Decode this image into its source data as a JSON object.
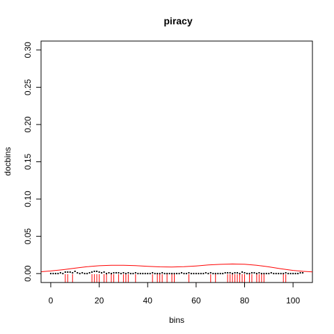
{
  "chart_data": {
    "type": "line",
    "title": "piracy",
    "xlabel": "bins",
    "ylabel": "docbins",
    "xlim": [
      -4,
      108
    ],
    "ylim": [
      -0.012,
      0.312
    ],
    "x_ticks": [
      0,
      20,
      40,
      60,
      80,
      100
    ],
    "y_ticks": [
      0.0,
      0.05,
      0.1,
      0.15,
      0.2,
      0.25,
      0.3
    ],
    "x_tick_labels": [
      "0",
      "20",
      "40",
      "60",
      "80",
      "100"
    ],
    "y_tick_labels": [
      "0.00",
      "0.05",
      "0.10",
      "0.15",
      "0.20",
      "0.25",
      "0.30"
    ],
    "grid": false,
    "series": [
      {
        "type": "points",
        "color": "#000000",
        "x": [
          0,
          1,
          2,
          3,
          4,
          5,
          6,
          7,
          8,
          9,
          10,
          11,
          12,
          13,
          14,
          15,
          16,
          17,
          18,
          19,
          20,
          21,
          22,
          23,
          24,
          25,
          26,
          27,
          28,
          29,
          30,
          31,
          32,
          33,
          34,
          35,
          36,
          37,
          38,
          39,
          40,
          41,
          42,
          43,
          44,
          45,
          46,
          47,
          48,
          49,
          50,
          51,
          52,
          53,
          54,
          55,
          56,
          57,
          58,
          59,
          60,
          61,
          62,
          63,
          64,
          65,
          66,
          67,
          68,
          69,
          70,
          71,
          72,
          73,
          74,
          75,
          76,
          77,
          78,
          79,
          80,
          81,
          82,
          83,
          84,
          85,
          86,
          87,
          88,
          89,
          90,
          91,
          92,
          93,
          94,
          95,
          96,
          97,
          98,
          99,
          100,
          101,
          102,
          103,
          104
        ],
        "y": [
          0.0,
          0.0,
          0.0,
          0.0,
          0.001,
          0.0,
          0.002,
          0.002,
          0.002,
          0.001,
          0.003,
          0.001,
          0.0,
          0.001,
          0.0,
          0.0,
          0.001,
          0.002,
          0.003,
          0.003,
          0.002,
          0.001,
          0.002,
          0.0,
          0.001,
          0.0,
          0.001,
          0.001,
          0.001,
          0.0,
          0.001,
          0.0,
          0.001,
          0.0,
          0.0,
          0.001,
          0.0,
          0.0,
          0.0,
          0.0,
          0.0,
          0.0,
          0.001,
          0.0,
          0.0,
          0.0,
          0.001,
          0.0,
          0.0,
          0.0,
          0.0,
          0.0,
          0.0,
          0.0,
          0.001,
          0.0,
          0.0,
          0.001,
          0.0,
          0.0,
          0.0,
          0.0,
          0.0,
          0.0,
          0.001,
          0.0,
          0.001,
          0.0,
          0.0,
          0.0,
          0.0,
          0.0,
          0.001,
          0.001,
          0.001,
          0.0,
          0.001,
          0.001,
          0.0,
          0.002,
          0.001,
          0.0,
          0.0,
          0.001,
          0.001,
          0.0,
          0.001,
          0.0,
          0.0,
          0.0,
          0.0,
          0.001,
          0.0,
          0.0,
          0.0,
          0.0,
          0.0,
          0.001,
          0.0,
          0.0,
          0.0,
          0.0,
          0.0,
          0.001,
          0.001
        ]
      },
      {
        "type": "density",
        "color": "#ff0000",
        "x": [
          -4,
          0,
          5,
          10,
          15,
          20,
          25,
          30,
          35,
          40,
          45,
          50,
          55,
          60,
          65,
          70,
          75,
          80,
          85,
          90,
          95,
          100,
          104,
          108
        ],
        "y": [
          0.0025,
          0.0035,
          0.0052,
          0.0072,
          0.0092,
          0.0105,
          0.0112,
          0.0112,
          0.0106,
          0.0097,
          0.009,
          0.0088,
          0.0092,
          0.0102,
          0.0115,
          0.0124,
          0.0128,
          0.0125,
          0.0112,
          0.009,
          0.0065,
          0.0042,
          0.003,
          0.0022
        ]
      },
      {
        "type": "rug",
        "color": "#ff0000",
        "x": [
          6,
          7,
          9,
          17,
          18,
          19,
          20,
          22,
          23,
          25,
          26,
          28,
          30,
          31,
          32,
          35,
          42,
          44,
          45,
          46,
          48,
          50,
          51,
          57,
          66,
          68,
          73,
          74,
          75,
          76,
          77,
          78,
          79,
          80,
          82,
          83,
          85,
          86,
          87,
          88,
          96,
          97
        ]
      }
    ]
  }
}
